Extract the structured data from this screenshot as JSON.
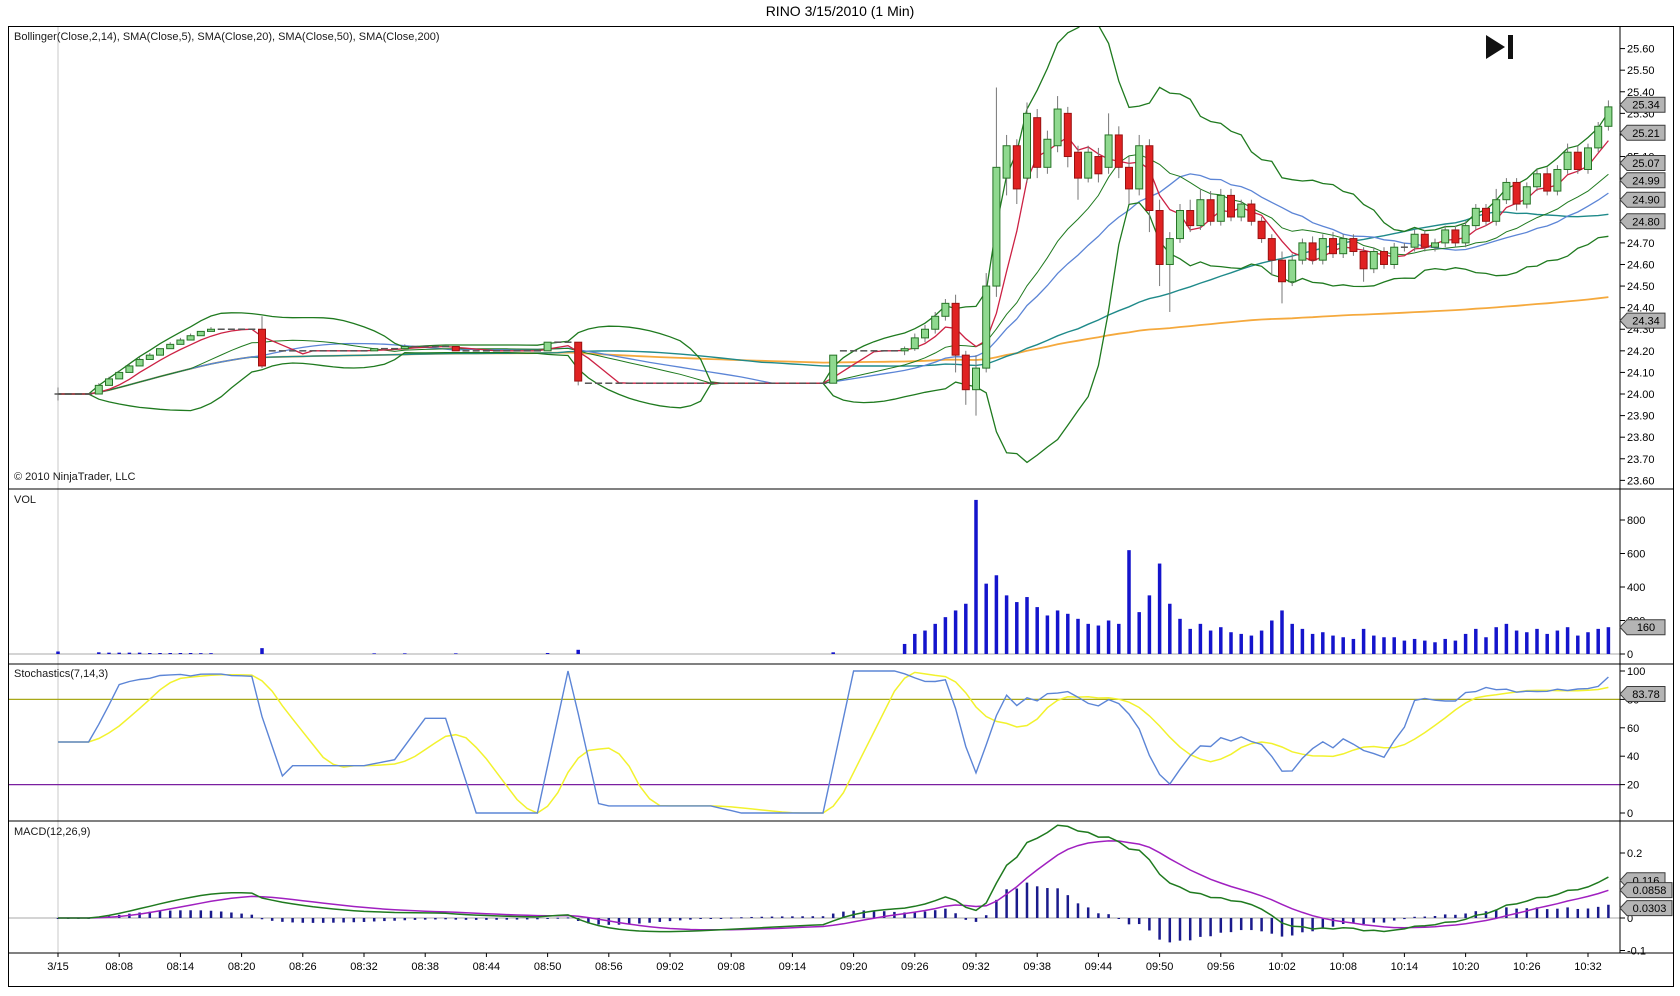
{
  "window": {
    "title": "RINO  3/15/2010 (1 Min)",
    "copyright": "© 2010 NinjaTrader, LLC"
  },
  "panels": {
    "price": {
      "label": "Bollinger(Close,2,14), SMA(Close,5), SMA(Close,20), SMA(Close,50), SMA(Close,200)",
      "ticks": [
        "25.60",
        "25.50",
        "25.40",
        "25.30",
        "25.20",
        "25.10",
        "25.00",
        "24.90",
        "24.80",
        "24.70",
        "24.60",
        "24.50",
        "24.40",
        "24.30",
        "24.20",
        "24.10",
        "24.00",
        "23.90",
        "23.80",
        "23.70",
        "23.60"
      ],
      "badges": [
        "25.34",
        "25.21",
        "25.07",
        "24.99",
        "24.90",
        "24.80",
        "24.34"
      ]
    },
    "volume": {
      "label": "VOL",
      "ticks": [
        "800",
        "600",
        "400",
        "200",
        "0"
      ],
      "badges": [
        "160"
      ]
    },
    "stochastics": {
      "label": "Stochastics(7,14,3)",
      "ticks": [
        "100",
        "80",
        "60",
        "40",
        "20",
        "0"
      ],
      "badges": [
        "83.78"
      ],
      "overbought": 80,
      "oversold": 20
    },
    "macd": {
      "label": "MACD(12,26,9)",
      "ticks": [
        "0.2",
        "0",
        "-0.1"
      ],
      "badges": [
        "0.116",
        "0.0858",
        "0.0303"
      ]
    }
  },
  "time_axis": {
    "ticks": [
      {
        "label": "3/15",
        "time": "08:02"
      },
      {
        "label": "08:08",
        "time": "08:08"
      },
      {
        "label": "08:14",
        "time": "08:14"
      },
      {
        "label": "08:20",
        "time": "08:20"
      },
      {
        "label": "08:26",
        "time": "08:26"
      },
      {
        "label": "08:32",
        "time": "08:32"
      },
      {
        "label": "08:38",
        "time": "08:38"
      },
      {
        "label": "08:44",
        "time": "08:44"
      },
      {
        "label": "08:50",
        "time": "08:50"
      },
      {
        "label": "08:56",
        "time": "08:56"
      },
      {
        "label": "09:02",
        "time": "09:02"
      },
      {
        "label": "09:08",
        "time": "09:08"
      },
      {
        "label": "09:14",
        "time": "09:14"
      },
      {
        "label": "09:20",
        "time": "09:20"
      },
      {
        "label": "09:26",
        "time": "09:26"
      },
      {
        "label": "09:32",
        "time": "09:32"
      },
      {
        "label": "09:38",
        "time": "09:38"
      },
      {
        "label": "09:44",
        "time": "09:44"
      },
      {
        "label": "09:50",
        "time": "09:50"
      },
      {
        "label": "09:56",
        "time": "09:56"
      },
      {
        "label": "10:02",
        "time": "10:02"
      },
      {
        "label": "10:08",
        "time": "10:08"
      },
      {
        "label": "10:14",
        "time": "10:14"
      },
      {
        "label": "10:20",
        "time": "10:20"
      },
      {
        "label": "10:26",
        "time": "10:26"
      },
      {
        "label": "10:32",
        "time": "10:32"
      }
    ]
  },
  "colors": {
    "up_fill": "#8fd98f",
    "up_border": "#267326",
    "down_fill": "#e02222",
    "down_border": "#991111",
    "wick": "#777777",
    "doji": "#555555",
    "bollinger": "#1f7a1f",
    "sma5": "#cc2244",
    "sma20": "#5c85d6",
    "sma50": "#1f8a8a",
    "sma200": "#f5a93d",
    "volume_bar": "#1414cc",
    "stoch_k": "#5c85d6",
    "stoch_d": "#f2f22e",
    "overbought_line": "#a8a818",
    "oversold_line": "#7a1fa0",
    "macd_line": "#1f7a1f",
    "macd_signal": "#a020c0",
    "macd_hist": "#1a1a8c",
    "badge_fill": "#b4b4b4",
    "badge_border": "#3c3c3c",
    "panel_border": "#000000",
    "session_line": "#c8c8c8",
    "zero_line": "#aaaaaa",
    "axis_text": "#000000"
  },
  "chart_data": {
    "type": "candlestick+indicators",
    "symbol": "RINO",
    "date": "3/15/2010",
    "interval": "1 Min",
    "indicators": {
      "bollinger": {
        "input": "Close",
        "width": 2,
        "period": 14
      },
      "sma_periods": [
        5,
        20,
        50,
        200
      ],
      "stochastics": {
        "periodD": 7,
        "periodK": 14,
        "smooth": 3
      },
      "macd": {
        "fast": 12,
        "slow": 26,
        "signal": 9
      }
    },
    "price_range": [
      23.56,
      25.7
    ],
    "volume_range": [
      0,
      1045
    ],
    "stoch_range": [
      0,
      100
    ],
    "macd_range": [
      -0.108,
      0.292
    ],
    "bars": [
      [
        "08:02",
        24.0,
        24.03,
        23.97,
        24.0,
        15
      ],
      {
        "run": [
          "08:03",
          "08:05",
          24.0
        ]
      },
      [
        "08:06",
        24.0,
        24.05,
        24.0,
        24.04,
        10
      ],
      [
        "08:07",
        24.04,
        24.08,
        24.04,
        24.07,
        8
      ],
      [
        "08:08",
        24.07,
        24.11,
        24.07,
        24.1,
        8
      ],
      [
        "08:09",
        24.1,
        24.14,
        24.1,
        24.13,
        8
      ],
      [
        "08:10",
        24.13,
        24.17,
        24.13,
        24.16,
        8
      ],
      [
        "08:11",
        24.16,
        24.19,
        24.16,
        24.18,
        6
      ],
      [
        "08:12",
        24.18,
        24.21,
        24.18,
        24.21,
        6
      ],
      [
        "08:13",
        24.21,
        24.24,
        24.21,
        24.23,
        6
      ],
      [
        "08:14",
        24.23,
        24.26,
        24.23,
        24.25,
        6
      ],
      [
        "08:15",
        24.25,
        24.28,
        24.25,
        24.27,
        6
      ],
      [
        "08:16",
        24.27,
        24.29,
        24.27,
        24.29,
        5
      ],
      [
        "08:17",
        24.29,
        24.31,
        24.29,
        24.3,
        5
      ],
      {
        "run": [
          "08:18",
          "08:21",
          24.3
        ]
      },
      [
        "08:22",
        24.3,
        24.36,
        24.12,
        24.13,
        35
      ],
      {
        "run": [
          "08:23",
          "08:32",
          24.2
        ]
      },
      [
        "08:33",
        24.2,
        24.21,
        24.2,
        24.21,
        4
      ],
      {
        "run": [
          "08:34",
          "08:35",
          24.21
        ]
      },
      [
        "08:36",
        24.21,
        24.23,
        24.21,
        24.22,
        4
      ],
      {
        "run": [
          "08:37",
          "08:40",
          24.22
        ]
      },
      [
        "08:41",
        24.22,
        24.22,
        24.2,
        24.2,
        4
      ],
      {
        "run": [
          "08:42",
          "08:49",
          24.2
        ]
      },
      [
        "08:50",
        24.2,
        24.24,
        24.2,
        24.24,
        6
      ],
      {
        "run": [
          "08:51",
          "08:52",
          24.24
        ]
      },
      [
        "08:53",
        24.24,
        24.24,
        24.04,
        24.06,
        25
      ],
      {
        "run": [
          "08:54",
          "09:17",
          24.05
        ]
      },
      [
        "09:18",
        24.05,
        24.18,
        24.05,
        24.18,
        10
      ],
      {
        "run": [
          "09:19",
          "09:24",
          24.2
        ]
      },
      [
        "09:25",
        24.2,
        24.22,
        24.18,
        24.21,
        60
      ],
      [
        "09:26",
        24.21,
        24.28,
        24.2,
        24.26,
        120
      ],
      [
        "09:27",
        24.26,
        24.32,
        24.24,
        24.3,
        140
      ],
      [
        "09:28",
        24.3,
        24.38,
        24.28,
        24.36,
        180
      ],
      [
        "09:29",
        24.36,
        24.44,
        24.34,
        24.42,
        220
      ],
      [
        "09:30",
        24.42,
        24.46,
        24.1,
        24.18,
        260
      ],
      [
        "09:31",
        24.18,
        24.2,
        23.95,
        24.02,
        300
      ],
      [
        "09:32",
        24.02,
        24.18,
        23.9,
        24.12,
        920
      ],
      [
        "09:33",
        24.12,
        24.56,
        24.1,
        24.5,
        420
      ],
      [
        "09:34",
        24.5,
        25.42,
        24.45,
        25.05,
        470
      ],
      [
        "09:35",
        25.0,
        25.2,
        24.92,
        25.15,
        350
      ],
      [
        "09:36",
        25.15,
        25.18,
        24.88,
        24.95,
        310
      ],
      [
        "09:37",
        25.0,
        25.35,
        24.98,
        25.3,
        340
      ],
      [
        "09:38",
        25.28,
        25.32,
        25.0,
        25.05,
        280
      ],
      [
        "09:39",
        25.05,
        25.22,
        25.02,
        25.18,
        230
      ],
      [
        "09:40",
        25.15,
        25.38,
        25.12,
        25.32,
        260
      ],
      [
        "09:41",
        25.3,
        25.33,
        25.05,
        25.1,
        240
      ],
      [
        "09:42",
        25.12,
        25.15,
        24.9,
        25.0,
        210
      ],
      [
        "09:43",
        25.0,
        25.15,
        24.98,
        25.12,
        180
      ],
      [
        "09:44",
        25.1,
        25.14,
        24.98,
        25.02,
        170
      ],
      [
        "09:45",
        25.05,
        25.3,
        25.02,
        25.2,
        200
      ],
      [
        "09:46",
        25.2,
        25.24,
        25.0,
        25.05,
        180
      ],
      [
        "09:47",
        25.05,
        25.1,
        24.88,
        24.95,
        620
      ],
      [
        "09:48",
        24.95,
        25.2,
        24.92,
        25.15,
        250
      ],
      [
        "09:49",
        25.15,
        25.18,
        24.75,
        24.85,
        350
      ],
      [
        "09:50",
        24.85,
        24.9,
        24.5,
        24.6,
        540
      ],
      [
        "09:51",
        24.6,
        24.75,
        24.38,
        24.72,
        300
      ],
      [
        "09:52",
        24.72,
        24.88,
        24.7,
        24.85,
        210
      ],
      [
        "09:53",
        24.85,
        24.9,
        24.75,
        24.78,
        150
      ],
      [
        "09:54",
        24.78,
        24.95,
        24.76,
        24.9,
        180
      ],
      [
        "09:55",
        24.9,
        24.94,
        24.78,
        24.8,
        140
      ],
      [
        "09:56",
        24.8,
        24.95,
        24.78,
        24.92,
        160
      ],
      [
        "09:57",
        24.92,
        24.95,
        24.8,
        24.82,
        130
      ],
      [
        "09:58",
        24.82,
        24.9,
        24.8,
        24.88,
        120
      ],
      [
        "09:59",
        24.88,
        24.9,
        24.78,
        24.8,
        110
      ],
      [
        "10:00",
        24.8,
        24.82,
        24.7,
        24.72,
        140
      ],
      [
        "10:01",
        24.72,
        24.74,
        24.55,
        24.62,
        200
      ],
      [
        "10:02",
        24.62,
        24.66,
        24.42,
        24.52,
        260
      ],
      [
        "10:03",
        24.52,
        24.65,
        24.5,
        24.62,
        180
      ],
      [
        "10:04",
        24.62,
        24.72,
        24.6,
        24.7,
        150
      ],
      [
        "10:05",
        24.7,
        24.73,
        24.6,
        24.62,
        120
      ],
      [
        "10:06",
        24.62,
        24.74,
        24.6,
        24.72,
        130
      ],
      [
        "10:07",
        24.72,
        24.75,
        24.63,
        24.65,
        110
      ],
      [
        "10:08",
        24.65,
        24.74,
        24.63,
        24.72,
        100
      ],
      [
        "10:09",
        24.72,
        24.74,
        24.64,
        24.66,
        90
      ],
      [
        "10:10",
        24.66,
        24.68,
        24.52,
        24.58,
        150
      ],
      [
        "10:11",
        24.58,
        24.68,
        24.56,
        24.66,
        110
      ],
      [
        "10:12",
        24.66,
        24.68,
        24.58,
        24.6,
        100
      ],
      [
        "10:13",
        24.6,
        24.7,
        24.58,
        24.68,
        100
      ],
      [
        "10:14",
        24.68,
        24.7,
        24.66,
        24.68,
        80
      ],
      [
        "10:15",
        24.68,
        24.76,
        24.66,
        24.74,
        90
      ],
      [
        "10:16",
        24.74,
        24.76,
        24.66,
        24.68,
        80
      ],
      [
        "10:17",
        24.68,
        24.72,
        24.66,
        24.7,
        70
      ],
      [
        "10:18",
        24.7,
        24.78,
        24.68,
        24.76,
        90
      ],
      [
        "10:19",
        24.76,
        24.78,
        24.68,
        24.7,
        80
      ],
      [
        "10:20",
        24.7,
        24.8,
        24.68,
        24.78,
        120
      ],
      [
        "10:21",
        24.78,
        24.88,
        24.76,
        24.86,
        150
      ],
      [
        "10:22",
        24.86,
        24.88,
        24.78,
        24.8,
        100
      ],
      [
        "10:23",
        24.8,
        24.95,
        24.78,
        24.9,
        160
      ],
      [
        "10:24",
        24.9,
        25.0,
        24.88,
        24.98,
        180
      ],
      [
        "10:25",
        24.98,
        25.0,
        24.85,
        24.88,
        140
      ],
      [
        "10:26",
        24.88,
        24.98,
        24.86,
        24.96,
        130
      ],
      [
        "10:27",
        24.96,
        25.04,
        24.94,
        25.02,
        150
      ],
      [
        "10:28",
        25.02,
        25.05,
        24.92,
        24.94,
        120
      ],
      [
        "10:29",
        24.94,
        25.06,
        24.92,
        25.04,
        140
      ],
      [
        "10:30",
        25.04,
        25.16,
        25.02,
        25.12,
        160
      ],
      [
        "10:31",
        25.12,
        25.15,
        25.02,
        25.04,
        110
      ],
      [
        "10:32",
        25.04,
        25.16,
        25.02,
        25.14,
        130
      ],
      [
        "10:33",
        25.14,
        25.26,
        25.12,
        25.24,
        150
      ],
      [
        "10:34",
        25.24,
        25.36,
        25.22,
        25.33,
        160
      ]
    ]
  }
}
